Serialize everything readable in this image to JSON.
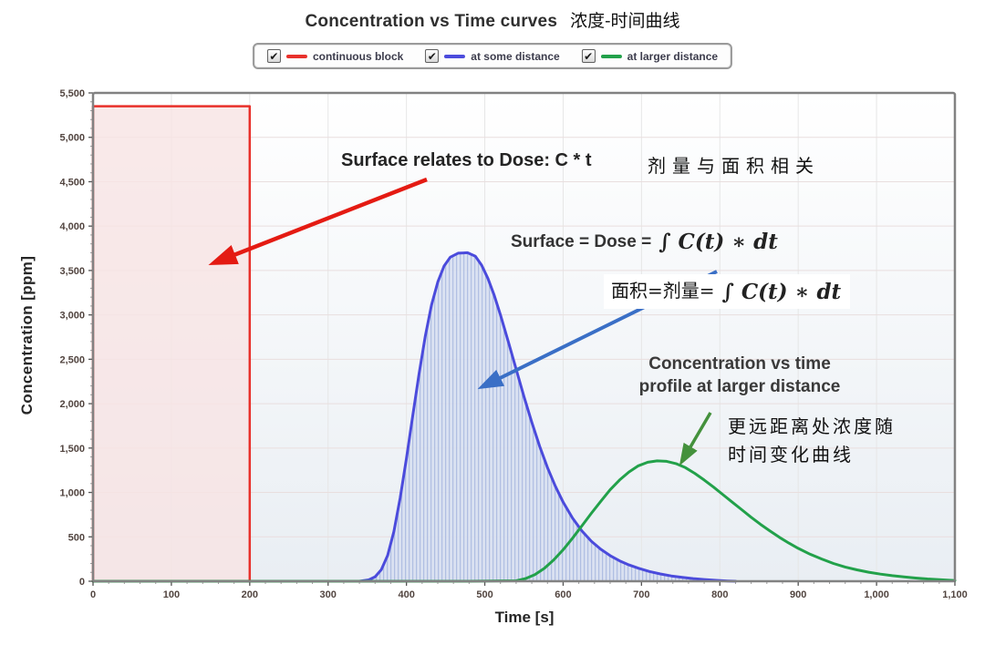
{
  "title": {
    "en": "Concentration vs Time curves",
    "zh": "浓度-时间曲线"
  },
  "legend": {
    "items": [
      {
        "label": "continuous block",
        "color": "#e8302a",
        "checked": true,
        "check_glyph": "✔"
      },
      {
        "label": "at some distance",
        "color": "#4b4bdc",
        "checked": true,
        "check_glyph": "✔"
      },
      {
        "label": "at larger distance",
        "color": "#22a14a",
        "checked": true,
        "check_glyph": "✔"
      }
    ]
  },
  "chart_data": {
    "type": "line",
    "title": "Concentration vs Time curves 浓度-时间曲线",
    "xlabel": "Time [s]",
    "ylabel": "Concentration [ppm]",
    "xlim": [
      0,
      1100
    ],
    "ylim": [
      0,
      5500
    ],
    "xtick_step": 100,
    "ytick_step": 500,
    "x_minor_step": 20,
    "y_minor_step": 100,
    "grid": true,
    "legend_position": "top",
    "colors": {
      "plot_border": "#828282",
      "grid_h": "#e9dede",
      "grid_v": "#e6e6e6",
      "tick_label": "#51443f",
      "bg_top": "#ffffff",
      "bg_bottom": "#e9eef3"
    },
    "series": [
      {
        "name": "continuous block",
        "color": "#e8302a",
        "fill": "#f7e3e3",
        "fill_opacity": 0.8,
        "points": [
          [
            0,
            0
          ],
          [
            0,
            5350
          ],
          [
            200,
            5350
          ],
          [
            200,
            0
          ]
        ]
      },
      {
        "name": "at some distance",
        "color": "#4b4bdc",
        "fill": "hatch",
        "fill_opacity": 0.9,
        "points": [
          [
            340,
            0
          ],
          [
            352,
            15
          ],
          [
            360,
            50
          ],
          [
            368,
            130
          ],
          [
            376,
            290
          ],
          [
            384,
            560
          ],
          [
            392,
            940
          ],
          [
            400,
            1380
          ],
          [
            408,
            1860
          ],
          [
            416,
            2330
          ],
          [
            424,
            2760
          ],
          [
            432,
            3110
          ],
          [
            440,
            3370
          ],
          [
            448,
            3550
          ],
          [
            456,
            3650
          ],
          [
            466,
            3695
          ],
          [
            478,
            3700
          ],
          [
            488,
            3660
          ],
          [
            496,
            3560
          ],
          [
            504,
            3410
          ],
          [
            512,
            3220
          ],
          [
            520,
            3000
          ],
          [
            530,
            2700
          ],
          [
            540,
            2390
          ],
          [
            550,
            2080
          ],
          [
            560,
            1790
          ],
          [
            570,
            1520
          ],
          [
            580,
            1280
          ],
          [
            590,
            1070
          ],
          [
            600,
            890
          ],
          [
            612,
            710
          ],
          [
            624,
            565
          ],
          [
            636,
            450
          ],
          [
            648,
            360
          ],
          [
            660,
            288
          ],
          [
            672,
            230
          ],
          [
            684,
            184
          ],
          [
            696,
            147
          ],
          [
            710,
            110
          ],
          [
            724,
            82
          ],
          [
            738,
            60
          ],
          [
            752,
            44
          ],
          [
            766,
            30
          ],
          [
            780,
            20
          ],
          [
            795,
            10
          ],
          [
            810,
            3
          ],
          [
            820,
            0
          ]
        ]
      },
      {
        "name": "at larger distance",
        "color": "#22a14a",
        "fill": "none",
        "points": [
          [
            0,
            0
          ],
          [
            200,
            0
          ],
          [
            400,
            0
          ],
          [
            480,
            0
          ],
          [
            540,
            5
          ],
          [
            552,
            30
          ],
          [
            564,
            75
          ],
          [
            576,
            145
          ],
          [
            588,
            240
          ],
          [
            600,
            355
          ],
          [
            612,
            485
          ],
          [
            624,
            625
          ],
          [
            636,
            765
          ],
          [
            648,
            900
          ],
          [
            660,
            1030
          ],
          [
            672,
            1140
          ],
          [
            684,
            1230
          ],
          [
            696,
            1300
          ],
          [
            708,
            1340
          ],
          [
            720,
            1355
          ],
          [
            732,
            1350
          ],
          [
            744,
            1325
          ],
          [
            756,
            1280
          ],
          [
            768,
            1215
          ],
          [
            780,
            1140
          ],
          [
            792,
            1060
          ],
          [
            804,
            975
          ],
          [
            816,
            890
          ],
          [
            828,
            805
          ],
          [
            840,
            720
          ],
          [
            852,
            640
          ],
          [
            864,
            565
          ],
          [
            876,
            495
          ],
          [
            888,
            430
          ],
          [
            900,
            370
          ],
          [
            915,
            305
          ],
          [
            930,
            250
          ],
          [
            945,
            200
          ],
          [
            960,
            160
          ],
          [
            975,
            128
          ],
          [
            990,
            102
          ],
          [
            1005,
            80
          ],
          [
            1020,
            63
          ],
          [
            1035,
            48
          ],
          [
            1050,
            36
          ],
          [
            1065,
            26
          ],
          [
            1080,
            18
          ],
          [
            1100,
            8
          ]
        ]
      }
    ]
  },
  "annotations": {
    "surface_dose": {
      "en": "Surface relates to Dose: C * t",
      "zh": "剂量与面积相关"
    },
    "surface_formula": {
      "prefix": "Surface = Dose =",
      "math": "∫ C(t) ∗ dt"
    },
    "surface_formula_zh": {
      "prefix": "面积=剂量=",
      "math": "∫ C(t) ∗ dt"
    },
    "larger_profile": {
      "line1": "Concentration vs time",
      "line2": "profile at larger distance",
      "zh1": "更远距离处浓度随",
      "zh2": "时间变化曲线"
    }
  }
}
